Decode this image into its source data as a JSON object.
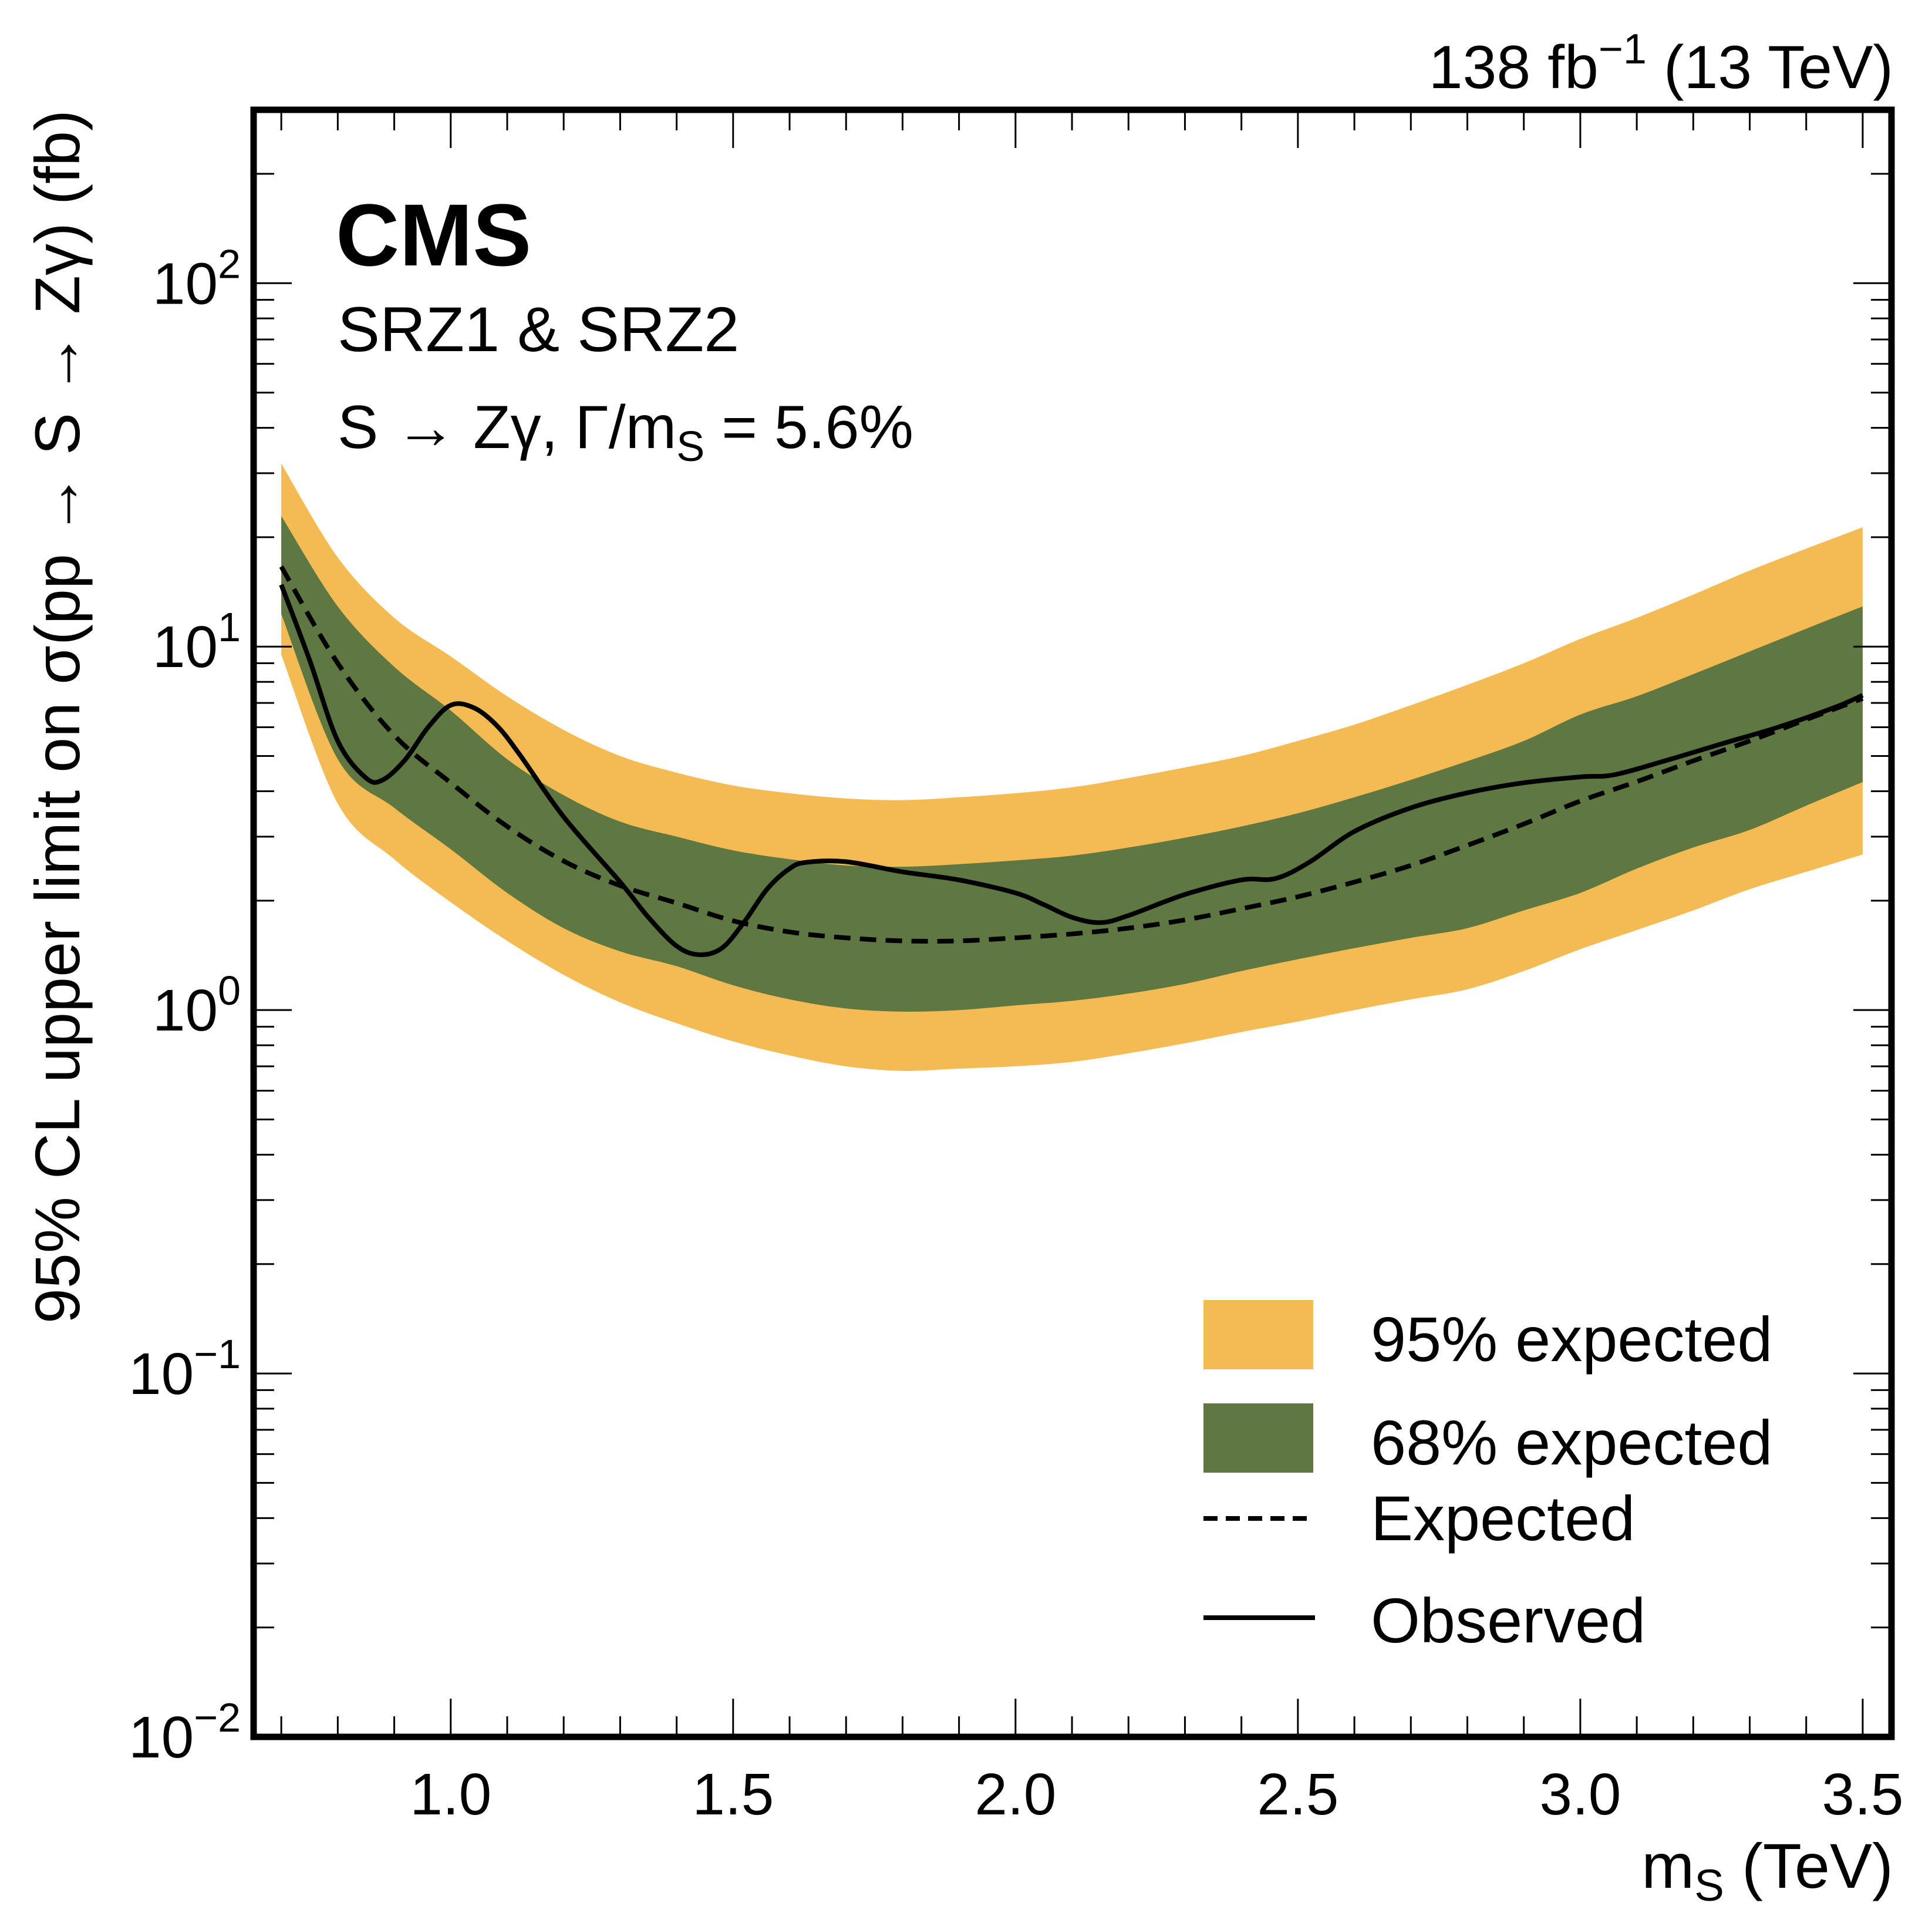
{
  "chart_data": {
    "type": "area",
    "title": "",
    "experiment_label": "CMS",
    "luminosity_label": {
      "value": "138",
      "unit": "fb",
      "exponent": "−1",
      "energy": "(13 TeV)"
    },
    "annotations": [
      "SRZ1 & SRZ2",
      {
        "process": "S → Zγ,",
        "width_label": "Γ/m",
        "width_sub": "S",
        "width_value": "= 5.6%"
      }
    ],
    "xlabel": {
      "main": "m",
      "sub": "S",
      "unit": " (TeV)"
    },
    "ylabel": "95% CL upper limit on σ(pp → S → Zγ) (fb)",
    "xlim": [
      0.651,
      3.551
    ],
    "ylim": [
      0.01,
      300
    ],
    "yscale": "log",
    "xticks": [
      {
        "value": 1.0,
        "label": "1.0"
      },
      {
        "value": 1.5,
        "label": "1.5"
      },
      {
        "value": 2.0,
        "label": "2.0"
      },
      {
        "value": 2.5,
        "label": "2.5"
      },
      {
        "value": 3.0,
        "label": "3.0"
      },
      {
        "value": 3.5,
        "label": "3.5"
      }
    ],
    "yticks": [
      {
        "value": 0.01,
        "base": "10",
        "exp": "−2"
      },
      {
        "value": 0.1,
        "base": "10",
        "exp": "−1"
      },
      {
        "value": 1,
        "base": "10",
        "exp": "0"
      },
      {
        "value": 10,
        "base": "10",
        "exp": "1"
      },
      {
        "value": 100,
        "base": "10",
        "exp": "2"
      }
    ],
    "grid": false,
    "legend_position": "bottom-right",
    "x": [
      0.7,
      0.8,
      0.9,
      1.0,
      1.1,
      1.2,
      1.3,
      1.4,
      1.5,
      1.6,
      1.7,
      1.8,
      1.9,
      2.0,
      2.1,
      2.2,
      2.3,
      2.4,
      2.5,
      2.6,
      2.7,
      2.8,
      2.9,
      3.0,
      3.1,
      3.2,
      3.3,
      3.4,
      3.5
    ],
    "series": [
      {
        "name": "95% expected",
        "kind": "band",
        "color": "#F4BB54",
        "low": [
          9.5,
          3.7,
          2.6,
          1.98,
          1.55,
          1.25,
          1.05,
          0.92,
          0.82,
          0.75,
          0.7,
          0.68,
          0.69,
          0.7,
          0.72,
          0.76,
          0.81,
          0.87,
          0.93,
          1.0,
          1.07,
          1.14,
          1.28,
          1.47,
          1.66,
          1.88,
          2.15,
          2.4,
          2.68
        ],
        "high": [
          31.9,
          17.6,
          12.0,
          9.4,
          7.3,
          5.9,
          5.0,
          4.5,
          4.15,
          3.95,
          3.82,
          3.78,
          3.85,
          3.95,
          4.1,
          4.35,
          4.65,
          5.0,
          5.5,
          6.1,
          6.9,
          7.85,
          9.0,
          10.5,
          12.0,
          13.9,
          16.2,
          18.6,
          21.3
        ]
      },
      {
        "name": "68% expected",
        "kind": "band",
        "color": "#5F7841",
        "low": [
          12.3,
          4.9,
          3.6,
          2.77,
          2.1,
          1.68,
          1.45,
          1.32,
          1.17,
          1.07,
          1.01,
          0.99,
          1.0,
          1.03,
          1.06,
          1.11,
          1.18,
          1.28,
          1.38,
          1.48,
          1.58,
          1.68,
          1.88,
          2.1,
          2.45,
          2.8,
          3.13,
          3.65,
          4.24
        ],
        "high": [
          22.9,
          12.9,
          8.8,
          6.67,
          4.9,
          3.9,
          3.3,
          3.0,
          2.75,
          2.6,
          2.5,
          2.48,
          2.52,
          2.58,
          2.66,
          2.8,
          2.98,
          3.2,
          3.48,
          3.85,
          4.3,
          4.84,
          5.5,
          6.5,
          7.3,
          8.4,
          9.7,
          11.2,
          12.9
        ]
      },
      {
        "name": "Expected",
        "kind": "line",
        "style": "dashed",
        "color": "#000000",
        "values": [
          16.6,
          9.0,
          5.7,
          4.22,
          3.2,
          2.57,
          2.2,
          1.97,
          1.76,
          1.64,
          1.58,
          1.55,
          1.55,
          1.58,
          1.62,
          1.68,
          1.77,
          1.9,
          2.05,
          2.25,
          2.5,
          2.84,
          3.25,
          3.76,
          4.25,
          4.85,
          5.5,
          6.3,
          7.2
        ]
      },
      {
        "name": "Observed",
        "kind": "line",
        "style": "solid",
        "color": "#000000",
        "x": [
          0.7,
          0.75,
          0.8,
          0.85,
          0.88,
          0.92,
          0.96,
          1.0,
          1.04,
          1.08,
          1.12,
          1.2,
          1.3,
          1.35,
          1.4,
          1.44,
          1.48,
          1.52,
          1.56,
          1.6,
          1.63,
          1.7,
          1.8,
          1.9,
          2.0,
          2.05,
          2.1,
          2.15,
          2.2,
          2.3,
          2.4,
          2.46,
          2.52,
          2.6,
          2.7,
          2.8,
          2.9,
          3.0,
          3.06,
          3.15,
          3.25,
          3.35,
          3.45,
          3.5
        ],
        "values": [
          14.8,
          9.2,
          5.5,
          4.35,
          4.3,
          4.9,
          6.0,
          6.9,
          6.8,
          6.1,
          5.1,
          3.4,
          2.25,
          1.8,
          1.5,
          1.42,
          1.48,
          1.75,
          2.15,
          2.45,
          2.55,
          2.56,
          2.4,
          2.28,
          2.1,
          1.95,
          1.8,
          1.74,
          1.82,
          2.08,
          2.28,
          2.3,
          2.55,
          3.1,
          3.6,
          3.96,
          4.22,
          4.38,
          4.44,
          4.85,
          5.4,
          6.0,
          6.8,
          7.35
        ]
      }
    ]
  }
}
